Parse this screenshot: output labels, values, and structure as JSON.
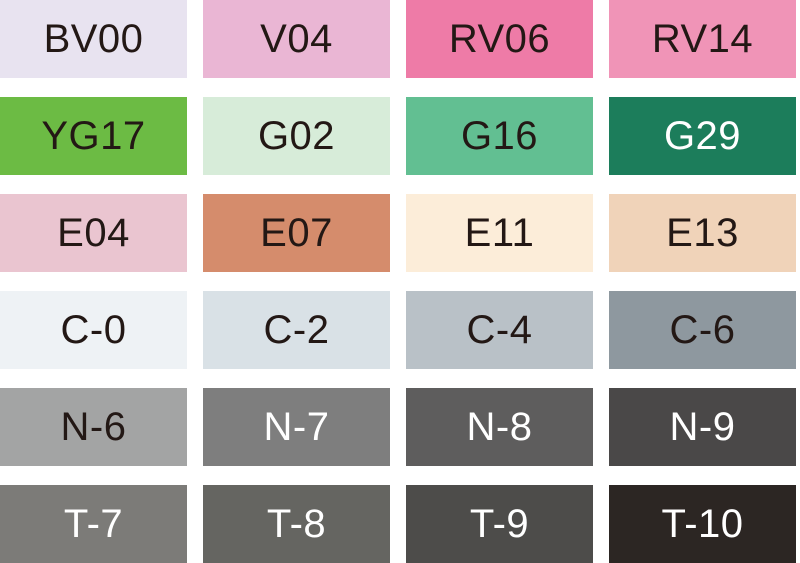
{
  "swatches": [
    {
      "code": "BV00",
      "color": "#e8e3f0",
      "text": "#231815"
    },
    {
      "code": "V04",
      "color": "#eab6d4",
      "text": "#231815"
    },
    {
      "code": "RV06",
      "color": "#ee7ba7",
      "text": "#231815"
    },
    {
      "code": "RV14",
      "color": "#f094b7",
      "text": "#231815"
    },
    {
      "code": "YG17",
      "color": "#6cbb44",
      "text": "#231815"
    },
    {
      "code": "G02",
      "color": "#d7ecd9",
      "text": "#231815"
    },
    {
      "code": "G16",
      "color": "#62bf92",
      "text": "#231815"
    },
    {
      "code": "G29",
      "color": "#1c7d5b",
      "text": "#ffffff"
    },
    {
      "code": "E04",
      "color": "#eac5d0",
      "text": "#231815"
    },
    {
      "code": "E07",
      "color": "#d58c6c",
      "text": "#231815"
    },
    {
      "code": "E11",
      "color": "#fcedd9",
      "text": "#231815"
    },
    {
      "code": "E13",
      "color": "#f0d3b9",
      "text": "#231815"
    },
    {
      "code": "C-0",
      "color": "#eef2f5",
      "text": "#231815"
    },
    {
      "code": "C-2",
      "color": "#d9e1e6",
      "text": "#231815"
    },
    {
      "code": "C-4",
      "color": "#b9c1c7",
      "text": "#231815"
    },
    {
      "code": "C-6",
      "color": "#8e989f",
      "text": "#231815"
    },
    {
      "code": "N-6",
      "color": "#a3a4a4",
      "text": "#231815"
    },
    {
      "code": "N-7",
      "color": "#7e7e7e",
      "text": "#ffffff"
    },
    {
      "code": "N-8",
      "color": "#5e5d5d",
      "text": "#ffffff"
    },
    {
      "code": "N-9",
      "color": "#4a4848",
      "text": "#ffffff"
    },
    {
      "code": "T-7",
      "color": "#7c7b78",
      "text": "#ffffff"
    },
    {
      "code": "T-8",
      "color": "#656561",
      "text": "#ffffff"
    },
    {
      "code": "T-9",
      "color": "#4d4c4a",
      "text": "#ffffff"
    },
    {
      "code": "T-10",
      "color": "#2c2623",
      "text": "#ffffff"
    }
  ]
}
